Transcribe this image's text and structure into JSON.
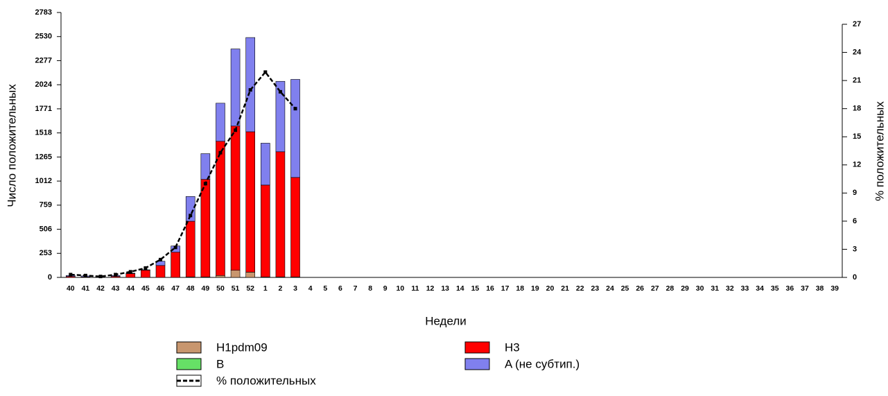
{
  "chart_data": {
    "type": "bar",
    "x_label": "Недели",
    "y_label": "Число положительных",
    "y2_label": "% положительных",
    "categories": [
      "40",
      "41",
      "42",
      "43",
      "44",
      "45",
      "46",
      "47",
      "48",
      "49",
      "50",
      "51",
      "52",
      "1",
      "2",
      "3",
      "4",
      "5",
      "6",
      "7",
      "8",
      "9",
      "10",
      "11",
      "12",
      "13",
      "14",
      "15",
      "16",
      "17",
      "18",
      "19",
      "20",
      "21",
      "22",
      "23",
      "24",
      "25",
      "26",
      "27",
      "28",
      "29",
      "30",
      "31",
      "32",
      "33",
      "34",
      "35",
      "36",
      "37",
      "38",
      "39"
    ],
    "ylim": [
      0,
      2783
    ],
    "yticks": [
      0,
      253,
      506,
      759,
      1012,
      1265,
      1518,
      1771,
      2024,
      2277,
      2530,
      2783
    ],
    "y2lim": [
      0,
      27
    ],
    "y2ticks": [
      0,
      3,
      6,
      9,
      12,
      15,
      18,
      21,
      24,
      27
    ],
    "series": [
      {
        "name": "H1pdm09",
        "type": "bar",
        "color": "#c8966e",
        "values": [
          0,
          0,
          0,
          0,
          0,
          0,
          0,
          0,
          5,
          5,
          20,
          75,
          55,
          5,
          5,
          5,
          null,
          null,
          null,
          null,
          null,
          null,
          null,
          null,
          null,
          null,
          null,
          null,
          null,
          null,
          null,
          null,
          null,
          null,
          null,
          null,
          null,
          null,
          null,
          null,
          null,
          null,
          null,
          null,
          null,
          null,
          null,
          null,
          null,
          null,
          null,
          null
        ]
      },
      {
        "name": "H3",
        "type": "bar",
        "color": "#ff0000",
        "values": [
          10,
          5,
          3,
          10,
          40,
          75,
          125,
          265,
          585,
          1025,
          1410,
          1515,
          1475,
          965,
          1315,
          1045,
          null,
          null,
          null,
          null,
          null,
          null,
          null,
          null,
          null,
          null,
          null,
          null,
          null,
          null,
          null,
          null,
          null,
          null,
          null,
          null,
          null,
          null,
          null,
          null,
          null,
          null,
          null,
          null,
          null,
          null,
          null,
          null,
          null,
          null,
          null,
          null
        ]
      },
      {
        "name": "B",
        "type": "bar",
        "color": "#66e066",
        "values": [
          0,
          0,
          0,
          0,
          0,
          0,
          0,
          0,
          0,
          0,
          0,
          0,
          0,
          0,
          0,
          0,
          null,
          null,
          null,
          null,
          null,
          null,
          null,
          null,
          null,
          null,
          null,
          null,
          null,
          null,
          null,
          null,
          null,
          null,
          null,
          null,
          null,
          null,
          null,
          null,
          null,
          null,
          null,
          null,
          null,
          null,
          null,
          null,
          null,
          null,
          null,
          null
        ]
      },
      {
        "name": "A (не субтип.)",
        "type": "bar",
        "color": "#8080ee",
        "values": [
          10,
          10,
          2,
          10,
          5,
          5,
          45,
          65,
          260,
          270,
          400,
          810,
          990,
          440,
          740,
          1030,
          null,
          null,
          null,
          null,
          null,
          null,
          null,
          null,
          null,
          null,
          null,
          null,
          null,
          null,
          null,
          null,
          null,
          null,
          null,
          null,
          null,
          null,
          null,
          null,
          null,
          null,
          null,
          null,
          null,
          null,
          null,
          null,
          null,
          null,
          null,
          null
        ]
      },
      {
        "name": "% положительных",
        "type": "line",
        "axis": "y2",
        "color": "#000000",
        "values": [
          0.3,
          0.2,
          0.1,
          0.3,
          0.6,
          1.0,
          1.9,
          3.2,
          6.6,
          10.0,
          13.3,
          15.7,
          20.0,
          21.9,
          19.8,
          18.0,
          null,
          null,
          null,
          null,
          null,
          null,
          null,
          null,
          null,
          null,
          null,
          null,
          null,
          null,
          null,
          null,
          null,
          null,
          null,
          null,
          null,
          null,
          null,
          null,
          null,
          null,
          null,
          null,
          null,
          null,
          null,
          null,
          null,
          null,
          null,
          null
        ]
      }
    ]
  }
}
